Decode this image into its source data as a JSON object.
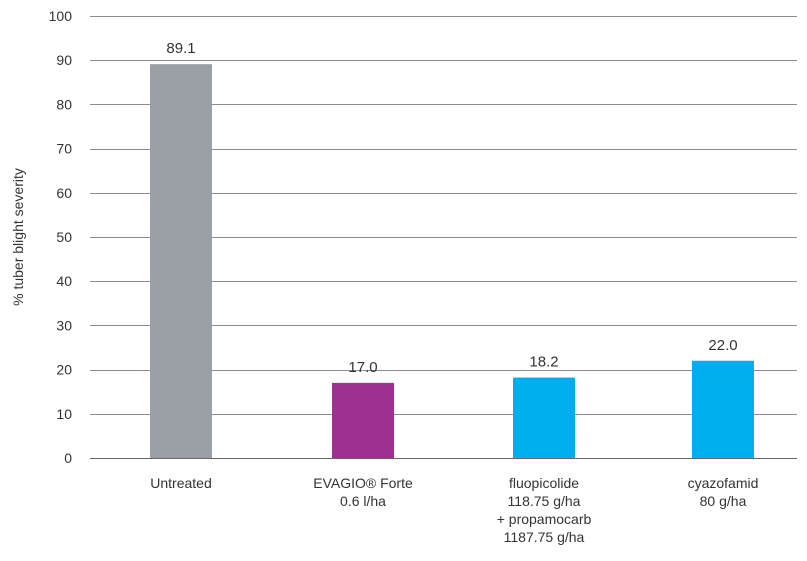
{
  "chart_data": {
    "type": "bar",
    "ylabel": "% tuber blight severity",
    "ylim": [
      0,
      100
    ],
    "yticks": [
      0,
      10,
      20,
      30,
      40,
      50,
      60,
      70,
      80,
      90,
      100
    ],
    "grid": "horizontal",
    "categories": [
      [
        "Untreated"
      ],
      [
        "EVAGIO® Forte",
        "0.6 l/ha"
      ],
      [
        "fluopicolide",
        "118.75 g/ha",
        "+ propamocarb",
        "1187.75 g/ha"
      ],
      [
        "cyazofamid",
        "80 g/ha"
      ]
    ],
    "values": [
      89.1,
      17.0,
      18.2,
      22.0
    ],
    "value_labels": [
      "89.1",
      "17.0",
      "18.2",
      "22.0"
    ],
    "colors": [
      "#9aa0a6",
      "#a0308f",
      "#00aeef",
      "#00aeef"
    ]
  },
  "colors": {
    "grid": "#8c8c8c",
    "axis": "#666666",
    "text": "#333333"
  }
}
